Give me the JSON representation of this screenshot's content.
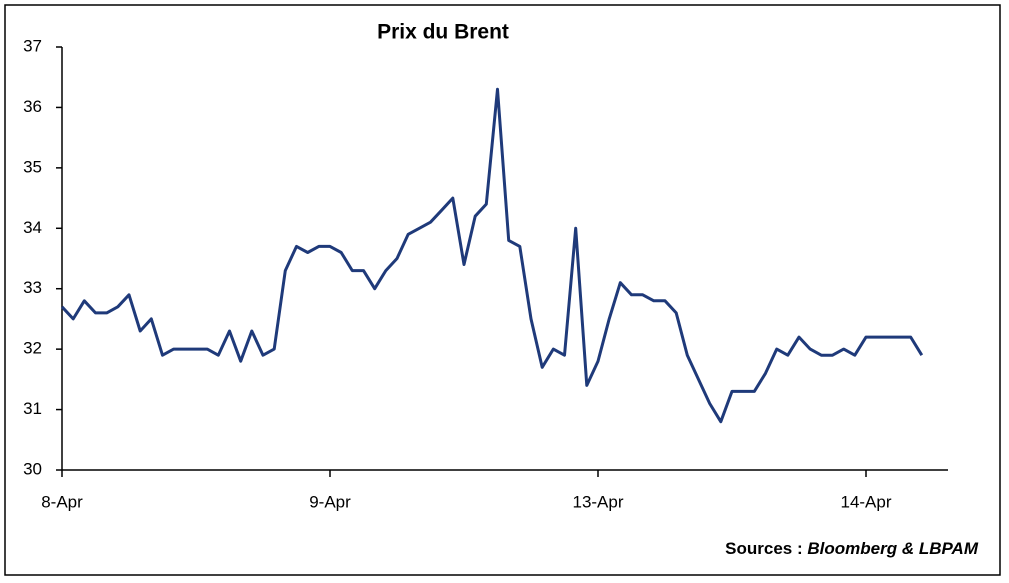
{
  "chart_data": {
    "type": "line",
    "title": "Prix du Brent",
    "categories": [
      "8-Apr",
      null,
      null,
      null,
      null,
      null,
      null,
      null,
      null,
      null,
      null,
      null,
      null,
      null,
      null,
      null,
      null,
      null,
      null,
      null,
      null,
      null,
      null,
      null,
      "9-Apr",
      null,
      null,
      null,
      null,
      null,
      null,
      null,
      null,
      null,
      null,
      null,
      null,
      null,
      null,
      null,
      null,
      null,
      null,
      null,
      null,
      null,
      null,
      null,
      "13-Apr",
      null,
      null,
      null,
      null,
      null,
      null,
      null,
      null,
      null,
      null,
      null,
      null,
      null,
      null,
      null,
      null,
      null,
      null,
      null,
      null,
      null,
      null,
      null,
      "14-Apr",
      null,
      null,
      null,
      null,
      null
    ],
    "series": [
      {
        "name": "Brent",
        "color": "#1f3a7a",
        "values": [
          32.7,
          32.5,
          32.8,
          32.6,
          32.6,
          32.7,
          32.9,
          32.3,
          32.5,
          31.9,
          32.0,
          32.0,
          32.0,
          32.0,
          31.9,
          32.3,
          31.8,
          32.3,
          31.9,
          32.0,
          33.3,
          33.7,
          33.6,
          33.7,
          33.7,
          33.6,
          33.3,
          33.3,
          33.0,
          33.3,
          33.5,
          33.9,
          34.0,
          34.1,
          34.3,
          34.5,
          33.4,
          34.2,
          34.4,
          36.3,
          33.8,
          33.7,
          32.5,
          31.7,
          32.0,
          31.9,
          34.0,
          31.4,
          31.8,
          32.5,
          33.1,
          32.9,
          32.9,
          32.8,
          32.8,
          32.6,
          31.9,
          31.5,
          31.1,
          30.8,
          31.3,
          31.3,
          31.3,
          31.6,
          32.0,
          31.9,
          32.2,
          32.0,
          31.9,
          31.9,
          32.0,
          31.9,
          32.2,
          32.2,
          32.2,
          32.2,
          32.2,
          31.9
        ]
      }
    ],
    "ylim": [
      30,
      37
    ],
    "yticks": [
      30,
      31,
      32,
      33,
      34,
      35,
      36,
      37
    ],
    "source_prefix": "Sources :",
    "source": "Bloomberg & LBPAM"
  }
}
